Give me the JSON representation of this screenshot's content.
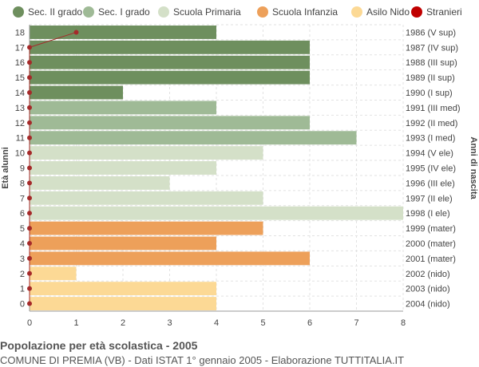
{
  "chart_data": {
    "type": "bar",
    "orientation": "horizontal",
    "ylabel_left": "Età alunni",
    "ylabel_right": "Anni di nascita",
    "xlim": [
      0,
      8
    ],
    "x_ticks": [
      "0",
      "1",
      "2",
      "3",
      "4",
      "5",
      "6",
      "7",
      "8"
    ],
    "grid": true,
    "legend_position": "top",
    "legend": [
      {
        "name": "Sec. II grado",
        "color": "#6e8f5e",
        "marker": "circle"
      },
      {
        "name": "Sec. I grado",
        "color": "#9fba96",
        "marker": "circle"
      },
      {
        "name": "Scuola Primaria",
        "color": "#d4e0c8",
        "marker": "circle"
      },
      {
        "name": "Scuola Infanzia",
        "color": "#eda05a",
        "marker": "circle"
      },
      {
        "name": "Asilo Nido",
        "color": "#fcd995",
        "marker": "circle"
      },
      {
        "name": "Stranieri",
        "color": "#c00000",
        "marker": "circle"
      }
    ],
    "categories": [
      "18",
      "17",
      "16",
      "15",
      "14",
      "13",
      "12",
      "11",
      "10",
      "9",
      "8",
      "7",
      "6",
      "5",
      "4",
      "3",
      "2",
      "1",
      "0"
    ],
    "birth_years": [
      "1986 (V sup)",
      "1987 (IV sup)",
      "1988 (III sup)",
      "1989 (II sup)",
      "1990 (I sup)",
      "1991 (III med)",
      "1992 (II med)",
      "1993 (I med)",
      "1994 (V ele)",
      "1995 (IV ele)",
      "1996 (III ele)",
      "1997 (II ele)",
      "1998 (I ele)",
      "1999 (mater)",
      "2000 (mater)",
      "2001 (mater)",
      "2002 (nido)",
      "2003 (nido)",
      "2004 (nido)"
    ],
    "values": [
      4,
      6,
      6,
      6,
      2,
      4,
      6,
      7,
      5,
      4,
      3,
      5,
      8,
      5,
      4,
      6,
      1,
      4,
      4
    ],
    "groups": [
      "Sec. II grado",
      "Sec. II grado",
      "Sec. II grado",
      "Sec. II grado",
      "Sec. II grado",
      "Sec. I grado",
      "Sec. I grado",
      "Sec. I grado",
      "Scuola Primaria",
      "Scuola Primaria",
      "Scuola Primaria",
      "Scuola Primaria",
      "Scuola Primaria",
      "Scuola Infanzia",
      "Scuola Infanzia",
      "Scuola Infanzia",
      "Asilo Nido",
      "Asilo Nido",
      "Asilo Nido"
    ],
    "stranieri": [
      1,
      0,
      0,
      0,
      0,
      0,
      0,
      0,
      0,
      0,
      0,
      0,
      0,
      0,
      0,
      0,
      0,
      0,
      0
    ],
    "line_color": "#a52a2a"
  },
  "footer": {
    "title": "Popolazione per età scolastica - 2005",
    "subtitle": "COMUNE DI PREMIA (VB) - Dati ISTAT 1° gennaio 2005 - Elaborazione TUTTITALIA.IT"
  }
}
